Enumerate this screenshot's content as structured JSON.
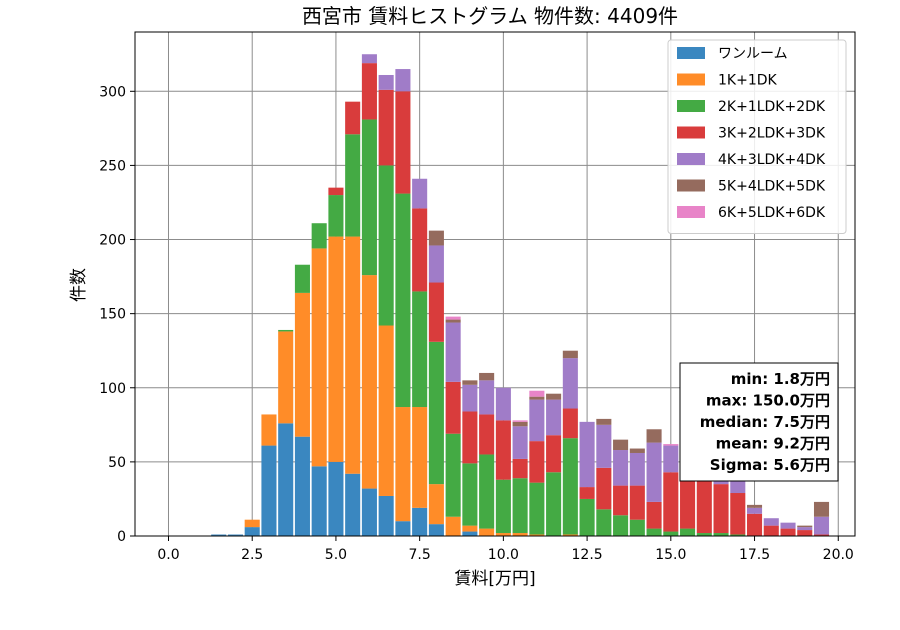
{
  "chart_data": {
    "type": "bar",
    "stacked": true,
    "title": "西宮市 賃料ヒストグラム 物件数: 4409件",
    "xlabel": "賃料[万円]",
    "ylabel": "件数",
    "xlim": [
      -1.0,
      20.5
    ],
    "ylim": [
      0,
      340
    ],
    "xticks": [
      0.0,
      2.5,
      5.0,
      7.5,
      10.0,
      12.5,
      15.0,
      17.5,
      20.0
    ],
    "xtick_labels": [
      "0.0",
      "2.5",
      "5.0",
      "7.5",
      "10.0",
      "12.5",
      "15.0",
      "17.5",
      "20.0"
    ],
    "yticks": [
      0,
      50,
      100,
      150,
      200,
      250,
      300
    ],
    "ytick_labels": [
      "0",
      "50",
      "100",
      "150",
      "200",
      "250",
      "300"
    ],
    "grid": true,
    "legend_position": "top-right",
    "x": [
      0.0,
      0.5,
      1.0,
      1.5,
      2.0,
      2.5,
      3.0,
      3.5,
      4.0,
      4.5,
      5.0,
      5.5,
      6.0,
      6.5,
      7.0,
      7.5,
      8.0,
      8.5,
      9.0,
      9.5,
      10.0,
      10.5,
      11.0,
      11.5,
      12.0,
      12.5,
      13.0,
      13.5,
      14.0,
      14.5,
      15.0,
      15.5,
      16.0,
      16.5,
      17.0,
      17.5,
      18.0,
      18.5,
      19.0,
      19.5
    ],
    "series": [
      {
        "name": "ワンルーム",
        "color": "#3a87c0",
        "values": [
          0,
          0,
          0,
          1,
          1,
          6,
          61,
          76,
          67,
          47,
          50,
          42,
          32,
          27,
          10,
          19,
          8,
          0,
          3,
          0,
          0,
          0,
          0,
          0,
          0,
          0,
          0,
          0,
          0,
          0,
          0,
          0,
          0,
          0,
          0,
          0,
          0,
          0,
          0,
          0
        ]
      },
      {
        "name": "1K+1DK",
        "color": "#ff8c28",
        "values": [
          0,
          0,
          0,
          0,
          0,
          5,
          21,
          62,
          97,
          147,
          152,
          160,
          144,
          115,
          77,
          68,
          27,
          13,
          4,
          5,
          2,
          2,
          1,
          0,
          1,
          0,
          0,
          0,
          0,
          0,
          0,
          0,
          0,
          0,
          0,
          0,
          0,
          0,
          0,
          0
        ]
      },
      {
        "name": "2K+1LDK+2DK",
        "color": "#44aa44",
        "values": [
          0,
          0,
          0,
          0,
          0,
          0,
          0,
          1,
          19,
          17,
          28,
          69,
          105,
          108,
          144,
          78,
          96,
          56,
          42,
          50,
          36,
          37,
          35,
          43,
          65,
          25,
          18,
          14,
          11,
          5,
          3,
          5,
          2,
          2,
          1,
          0,
          0,
          0,
          0,
          0
        ]
      },
      {
        "name": "3K+2LDK+3DK",
        "color": "#d93c3c",
        "values": [
          0,
          0,
          0,
          0,
          0,
          0,
          0,
          0,
          0,
          0,
          5,
          22,
          38,
          51,
          69,
          56,
          40,
          35,
          35,
          27,
          40,
          13,
          28,
          25,
          20,
          8,
          28,
          20,
          23,
          18,
          40,
          38,
          38,
          33,
          28,
          15,
          7,
          5,
          4,
          1
        ]
      },
      {
        "name": "4K+3LDK+4DK",
        "color": "#a07cc8",
        "values": [
          0,
          0,
          0,
          0,
          0,
          0,
          0,
          0,
          0,
          0,
          0,
          0,
          6,
          10,
          15,
          20,
          25,
          40,
          18,
          23,
          22,
          22,
          28,
          24,
          34,
          44,
          29,
          24,
          22,
          40,
          18,
          20,
          20,
          13,
          10,
          4,
          5,
          4,
          2,
          12
        ]
      },
      {
        "name": "5K+4LDK+5DK",
        "color": "#956b5e",
        "values": [
          0,
          0,
          0,
          0,
          0,
          0,
          0,
          0,
          0,
          0,
          0,
          0,
          0,
          0,
          0,
          0,
          10,
          2,
          3,
          5,
          0,
          3,
          2,
          4,
          5,
          0,
          4,
          7,
          3,
          9,
          0,
          3,
          0,
          2,
          1,
          2,
          0,
          0,
          1,
          10
        ]
      },
      {
        "name": "6K+5LDK+6DK",
        "color": "#e884c8",
        "values": [
          0,
          0,
          0,
          0,
          0,
          0,
          0,
          0,
          0,
          0,
          0,
          0,
          0,
          0,
          0,
          0,
          0,
          2,
          0,
          0,
          0,
          1,
          4,
          0,
          0,
          0,
          0,
          0,
          0,
          0,
          1,
          0,
          0,
          2,
          1,
          0,
          0,
          0,
          0,
          0
        ]
      }
    ],
    "annotations": [
      "min: 1.8万円",
      "max: 150.0万円",
      "median: 7.5万円",
      "mean: 9.2万円",
      "Sigma: 5.6万円"
    ]
  }
}
